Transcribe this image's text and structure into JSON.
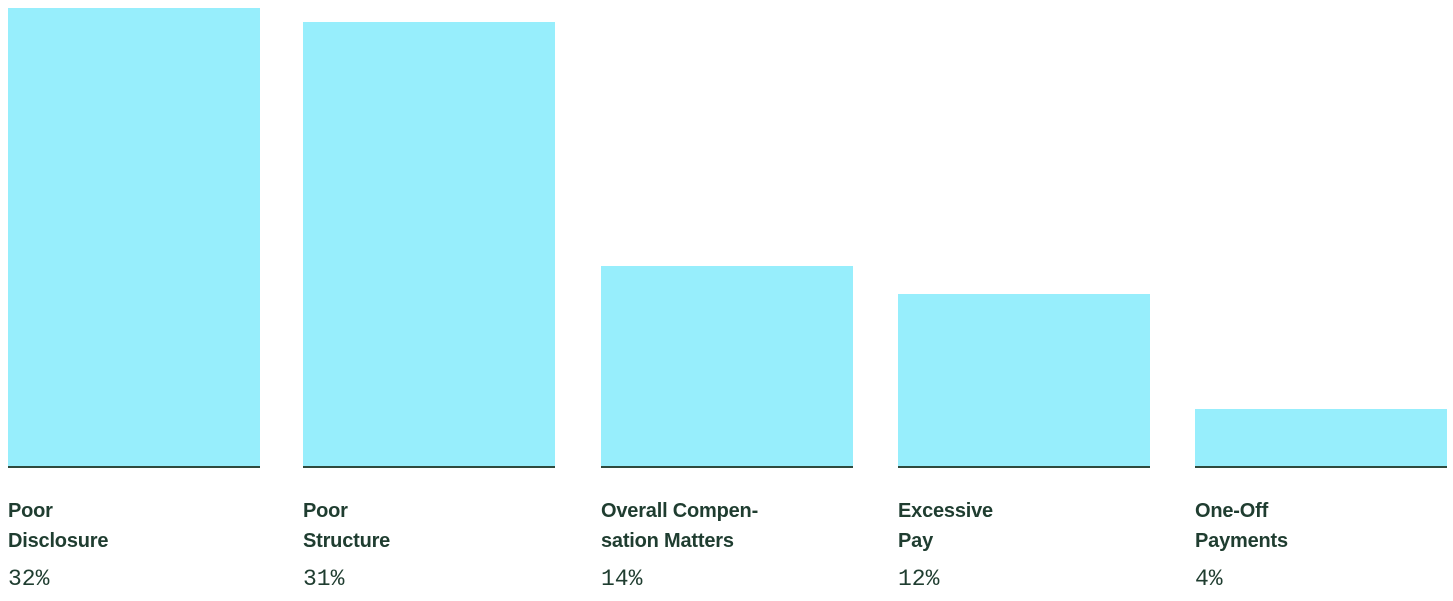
{
  "chart_data": {
    "type": "bar",
    "categories": [
      [
        "Poor",
        "Disclosure"
      ],
      [
        "Poor",
        "Structure"
      ],
      [
        "Overall Compen-",
        "sation Matters"
      ],
      [
        "Excessive",
        "Pay"
      ],
      [
        "One-Off",
        "Payments"
      ]
    ],
    "values": [
      32,
      31,
      14,
      12,
      4
    ],
    "value_labels": [
      "32%",
      "31%",
      "14%",
      "12%",
      "4%"
    ],
    "ylim": [
      0,
      32
    ],
    "grid": false,
    "legend": "none"
  },
  "colors": {
    "bar": "#97eefc",
    "baseline": "#2f4a3e",
    "text": "#1f3d30"
  }
}
